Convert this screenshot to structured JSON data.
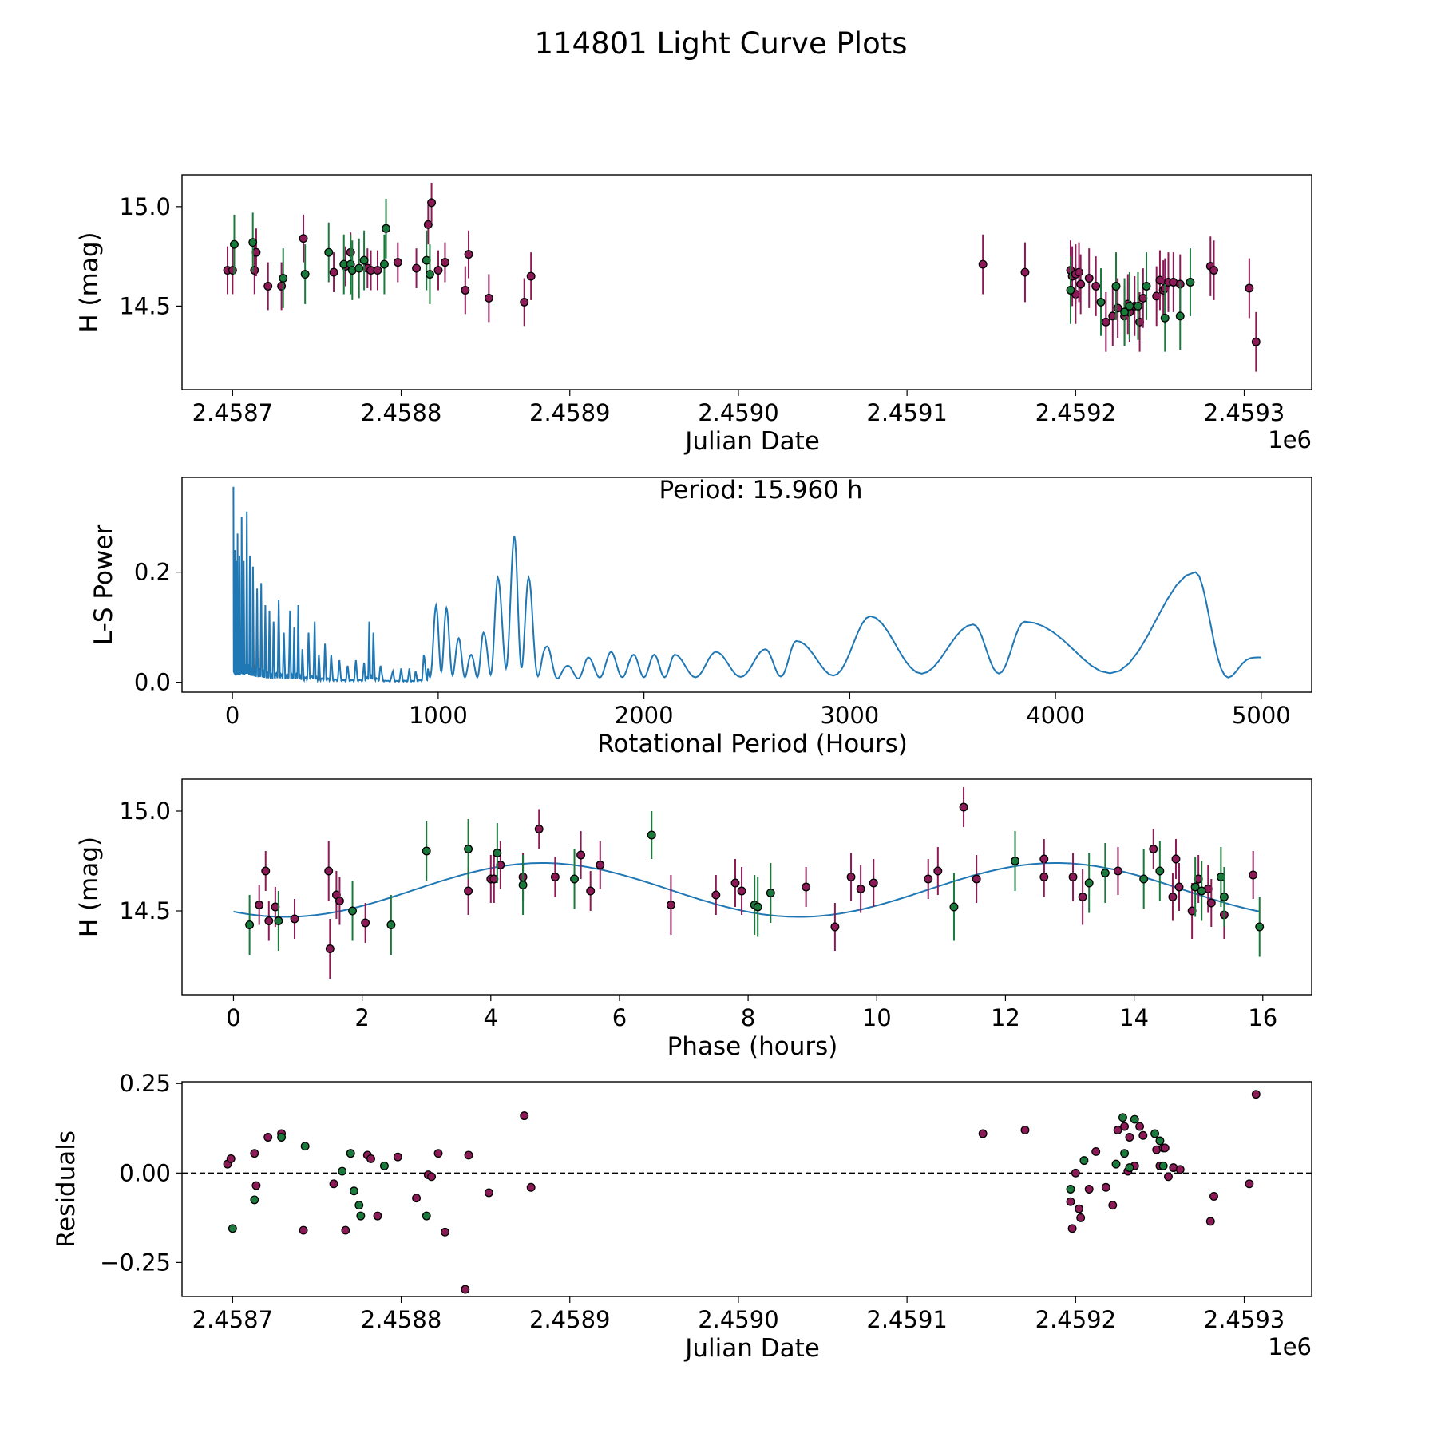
{
  "figure": {
    "title": "114801 Light Curve Plots",
    "colors": {
      "point_a": "#8b1a56",
      "point_b": "#1a7a3c",
      "curve": "#1f77b4",
      "frame": "#000000"
    }
  },
  "chart_data": [
    {
      "type": "scatter",
      "name": "light-curve",
      "xlabel": "Julian Date",
      "ylabel": "H (mag)",
      "xlim": [
        2458670,
        2459340
      ],
      "ylim": [
        14.08,
        15.16
      ],
      "x_offset_label": "1e6",
      "xticks": [
        2458700,
        2458800,
        2458900,
        2459000,
        2459100,
        2459200,
        2459300
      ],
      "xtick_labels": [
        "2.4587",
        "2.4588",
        "2.4589",
        "2.4590",
        "2.4591",
        "2.4592",
        "2.4593"
      ],
      "yticks": [
        14.5,
        15.0
      ],
      "ytick_labels": [
        "14.5",
        "15.0"
      ],
      "series": [
        {
          "name": "band-a",
          "color": "#8b1a56",
          "x": [
            2458697,
            2458700,
            2458713,
            2458714,
            2458721,
            2458729,
            2458742,
            2458760,
            2458767,
            2458770,
            2458780,
            2458782,
            2458786,
            2458798,
            2458809,
            2458816,
            2458818,
            2458822,
            2458826,
            2458838,
            2458840,
            2458852,
            2458873,
            2458877,
            2459145,
            2459170,
            2459197,
            2459198,
            2459200,
            2459200,
            2459202,
            2459203,
            2459208,
            2459212,
            2459218,
            2459222,
            2459225,
            2459229,
            2459231,
            2459232,
            2459235,
            2459238,
            2459240,
            2459248,
            2459250,
            2459252,
            2459253,
            2459255,
            2459258,
            2459262,
            2459280,
            2459282,
            2459303,
            2459307
          ],
          "y": [
            14.68,
            14.68,
            14.68,
            14.77,
            14.6,
            14.6,
            14.84,
            14.67,
            14.7,
            14.77,
            14.69,
            14.68,
            14.68,
            14.72,
            14.69,
            14.91,
            15.02,
            14.68,
            14.72,
            14.58,
            14.76,
            14.54,
            14.52,
            14.65,
            14.71,
            14.67,
            14.68,
            14.65,
            14.56,
            14.66,
            14.67,
            14.61,
            14.64,
            14.6,
            14.42,
            14.45,
            14.49,
            14.45,
            14.51,
            14.47,
            14.5,
            14.42,
            14.54,
            14.55,
            14.63,
            14.58,
            14.59,
            14.62,
            14.62,
            14.61,
            14.7,
            14.68,
            14.59,
            14.32
          ],
          "yerr": [
            0.12,
            0.12,
            0.12,
            0.12,
            0.12,
            0.12,
            0.12,
            0.1,
            0.1,
            0.1,
            0.1,
            0.1,
            0.1,
            0.1,
            0.1,
            0.1,
            0.1,
            0.1,
            0.1,
            0.12,
            0.12,
            0.12,
            0.12,
            0.12,
            0.15,
            0.15,
            0.15,
            0.15,
            0.15,
            0.15,
            0.15,
            0.15,
            0.15,
            0.15,
            0.15,
            0.15,
            0.15,
            0.15,
            0.15,
            0.15,
            0.15,
            0.15,
            0.15,
            0.15,
            0.15,
            0.15,
            0.15,
            0.15,
            0.15,
            0.15,
            0.15,
            0.15,
            0.15,
            0.15
          ]
        },
        {
          "name": "band-b",
          "color": "#1a7a3c",
          "x": [
            2458701,
            2458712,
            2458730,
            2458743,
            2458757,
            2458766,
            2458770,
            2458771,
            2458775,
            2458778,
            2458790,
            2458791,
            2458815,
            2458817,
            2459197,
            2459215,
            2459224,
            2459229,
            2459232,
            2459237,
            2459242,
            2459253,
            2459262,
            2459268
          ],
          "y": [
            14.81,
            14.82,
            14.64,
            14.66,
            14.77,
            14.71,
            14.71,
            14.68,
            14.69,
            14.73,
            14.71,
            14.89,
            14.73,
            14.66,
            14.58,
            14.52,
            14.6,
            14.47,
            14.5,
            14.5,
            14.6,
            14.44,
            14.45,
            14.62
          ],
          "yerr": [
            0.15,
            0.15,
            0.15,
            0.15,
            0.15,
            0.15,
            0.15,
            0.15,
            0.15,
            0.15,
            0.15,
            0.15,
            0.15,
            0.15,
            0.17,
            0.17,
            0.17,
            0.17,
            0.17,
            0.17,
            0.17,
            0.17,
            0.17,
            0.17
          ]
        }
      ]
    },
    {
      "type": "line",
      "name": "periodogram",
      "xlabel": "Rotational Period (Hours)",
      "ylabel": "L-S Power",
      "xlim": [
        -245,
        5245
      ],
      "ylim": [
        -0.018,
        0.372
      ],
      "xticks": [
        0,
        1000,
        2000,
        3000,
        4000,
        5000
      ],
      "xtick_labels": [
        "0",
        "1000",
        "2000",
        "3000",
        "4000",
        "5000"
      ],
      "yticks": [
        0.0,
        0.2
      ],
      "ytick_labels": [
        "0.0",
        "0.2"
      ],
      "annotation": "Period: 15.960 h",
      "peaks": [
        [
          5,
          0.355
        ],
        [
          12,
          0.24
        ],
        [
          18,
          0.22
        ],
        [
          25,
          0.27
        ],
        [
          34,
          0.23
        ],
        [
          45,
          0.3
        ],
        [
          55,
          0.22
        ],
        [
          70,
          0.31
        ],
        [
          85,
          0.23
        ],
        [
          100,
          0.21
        ],
        [
          120,
          0.17
        ],
        [
          140,
          0.18
        ],
        [
          160,
          0.14
        ],
        [
          180,
          0.13
        ],
        [
          200,
          0.11
        ],
        [
          225,
          0.15
        ],
        [
          250,
          0.09
        ],
        [
          280,
          0.13
        ],
        [
          300,
          0.1
        ],
        [
          320,
          0.14
        ],
        [
          340,
          0.06
        ],
        [
          370,
          0.09
        ],
        [
          400,
          0.11
        ],
        [
          420,
          0.05
        ],
        [
          450,
          0.07
        ],
        [
          480,
          0.05
        ],
        [
          520,
          0.04
        ],
        [
          560,
          0.03
        ],
        [
          600,
          0.04
        ],
        [
          640,
          0.035
        ],
        [
          665,
          0.11
        ],
        [
          685,
          0.09
        ],
        [
          720,
          0.03
        ],
        [
          780,
          0.02
        ],
        [
          820,
          0.025
        ],
        [
          860,
          0.025
        ],
        [
          890,
          0.02
        ],
        [
          930,
          0.05
        ],
        [
          990,
          0.14
        ],
        [
          1040,
          0.135
        ],
        [
          1100,
          0.08
        ],
        [
          1160,
          0.05
        ],
        [
          1220,
          0.09
        ],
        [
          1290,
          0.19
        ],
        [
          1370,
          0.265
        ],
        [
          1440,
          0.19
        ],
        [
          1530,
          0.065
        ],
        [
          1630,
          0.03
        ],
        [
          1730,
          0.045
        ],
        [
          1840,
          0.055
        ],
        [
          1950,
          0.05
        ],
        [
          2050,
          0.05
        ],
        [
          2150,
          0.05
        ],
        [
          2350,
          0.055
        ],
        [
          2590,
          0.06
        ],
        [
          2740,
          0.075
        ],
        [
          3100,
          0.12
        ],
        [
          3600,
          0.105
        ],
        [
          3850,
          0.11
        ],
        [
          4680,
          0.2
        ],
        [
          5000,
          0.045
        ]
      ]
    },
    {
      "type": "scatter",
      "name": "phase-folded",
      "xlabel": "Phase (hours)",
      "ylabel": "H (mag)",
      "xlim": [
        -0.8,
        16.76
      ],
      "ylim": [
        14.08,
        15.16
      ],
      "xticks": [
        0,
        2,
        4,
        6,
        8,
        10,
        12,
        14,
        16
      ],
      "xtick_labels": [
        "0",
        "2",
        "4",
        "6",
        "8",
        "10",
        "12",
        "14",
        "16"
      ],
      "yticks": [
        14.5,
        15.0
      ],
      "ytick_labels": [
        "14.5",
        "15.0"
      ],
      "fit_curve": {
        "period": 15.96,
        "mean": 14.605,
        "amplitude": 0.135,
        "peak_phase": 4.8
      },
      "series": [
        {
          "name": "band-a",
          "color": "#8b1a56",
          "x": [
            0.4,
            0.5,
            0.55,
            0.65,
            0.95,
            1.48,
            1.5,
            1.6,
            1.65,
            2.05,
            3.65,
            4.0,
            4.05,
            4.15,
            4.5,
            4.75,
            5.0,
            5.4,
            5.55,
            5.7,
            6.8,
            7.5,
            7.8,
            7.9,
            8.9,
            9.35,
            9.6,
            9.75,
            9.95,
            10.8,
            10.95,
            11.35,
            11.55,
            12.6,
            12.6,
            13.05,
            13.2,
            13.75,
            14.3,
            14.6,
            14.65,
            14.7,
            14.9,
            15.0,
            15.15,
            15.2,
            15.4,
            15.85
          ],
          "y": [
            14.53,
            14.7,
            14.45,
            14.52,
            14.46,
            14.7,
            14.31,
            14.58,
            14.55,
            14.44,
            14.6,
            14.66,
            14.66,
            14.73,
            14.67,
            14.91,
            14.67,
            14.78,
            14.6,
            14.73,
            14.53,
            14.58,
            14.64,
            14.6,
            14.62,
            14.42,
            14.67,
            14.61,
            14.64,
            14.66,
            14.7,
            15.02,
            14.66,
            14.76,
            14.67,
            14.67,
            14.57,
            14.7,
            14.81,
            14.57,
            14.76,
            14.62,
            14.5,
            14.66,
            14.61,
            14.54,
            14.48,
            14.68
          ],
          "yerr": [
            0.1,
            0.1,
            0.1,
            0.1,
            0.1,
            0.15,
            0.15,
            0.12,
            0.12,
            0.1,
            0.12,
            0.12,
            0.12,
            0.12,
            0.12,
            0.1,
            0.1,
            0.12,
            0.1,
            0.12,
            0.15,
            0.1,
            0.12,
            0.12,
            0.1,
            0.12,
            0.12,
            0.12,
            0.12,
            0.1,
            0.12,
            0.1,
            0.12,
            0.1,
            0.1,
            0.12,
            0.14,
            0.12,
            0.1,
            0.12,
            0.1,
            0.12,
            0.14,
            0.12,
            0.12,
            0.12,
            0.12,
            0.12
          ]
        },
        {
          "name": "band-b",
          "color": "#1a7a3c",
          "x": [
            0.25,
            0.7,
            1.85,
            2.45,
            3.0,
            3.65,
            4.1,
            4.5,
            5.3,
            6.5,
            8.1,
            8.15,
            8.35,
            11.2,
            12.15,
            13.3,
            13.55,
            14.15,
            14.4,
            14.95,
            15.05,
            15.35,
            15.4,
            15.95
          ],
          "y": [
            14.43,
            14.45,
            14.5,
            14.43,
            14.8,
            14.81,
            14.79,
            14.63,
            14.66,
            14.88,
            14.53,
            14.52,
            14.59,
            14.52,
            14.75,
            14.64,
            14.69,
            14.66,
            14.7,
            14.62,
            14.6,
            14.67,
            14.57,
            14.42
          ],
          "yerr": [
            0.15,
            0.15,
            0.15,
            0.15,
            0.15,
            0.15,
            0.15,
            0.15,
            0.15,
            0.12,
            0.15,
            0.15,
            0.15,
            0.17,
            0.15,
            0.15,
            0.15,
            0.15,
            0.15,
            0.15,
            0.15,
            0.15,
            0.15,
            0.15
          ]
        }
      ]
    },
    {
      "type": "scatter",
      "name": "residuals",
      "xlabel": "Julian Date",
      "ylabel": "Residuals",
      "xlim": [
        2458670,
        2459340
      ],
      "ylim": [
        -0.345,
        0.255
      ],
      "x_offset_label": "1e6",
      "xticks": [
        2458700,
        2458800,
        2458900,
        2459000,
        2459100,
        2459200,
        2459300
      ],
      "xtick_labels": [
        "2.4587",
        "2.4588",
        "2.4589",
        "2.4590",
        "2.4591",
        "2.4592",
        "2.4593"
      ],
      "yticks": [
        -0.25,
        0.0,
        0.25
      ],
      "ytick_labels": [
        "−0.25",
        "0.00",
        "0.25"
      ],
      "zero_line": 0,
      "series": [
        {
          "name": "band-a",
          "color": "#8b1a56",
          "x": [
            2458697,
            2458699,
            2458713,
            2458714,
            2458721,
            2458729,
            2458742,
            2458760,
            2458767,
            2458770,
            2458780,
            2458782,
            2458786,
            2458798,
            2458809,
            2458816,
            2458818,
            2458822,
            2458826,
            2458838,
            2458840,
            2458852,
            2458873,
            2458877,
            2459145,
            2459170,
            2459197,
            2459198,
            2459200,
            2459202,
            2459203,
            2459208,
            2459212,
            2459218,
            2459222,
            2459225,
            2459229,
            2459231,
            2459232,
            2459235,
            2459238,
            2459240,
            2459248,
            2459250,
            2459252,
            2459253,
            2459255,
            2459258,
            2459262,
            2459280,
            2459282,
            2459303,
            2459307
          ],
          "y": [
            0.025,
            0.04,
            0.055,
            -0.035,
            0.1,
            0.11,
            -0.16,
            -0.03,
            -0.16,
            0.055,
            0.05,
            0.04,
            -0.12,
            0.045,
            -0.07,
            -0.005,
            -0.01,
            0.055,
            -0.165,
            -0.325,
            0.05,
            -0.055,
            0.16,
            -0.04,
            0.11,
            0.12,
            -0.08,
            -0.155,
            0.0,
            -0.1,
            -0.125,
            -0.045,
            0.06,
            -0.04,
            -0.09,
            0.12,
            0.13,
            0.005,
            0.1,
            0.02,
            0.13,
            0.105,
            0.065,
            0.02,
            0.07,
            0.07,
            -0.01,
            0.015,
            0.01,
            -0.135,
            -0.065,
            -0.03,
            0.22
          ]
        },
        {
          "name": "band-b",
          "color": "#1a7a3c",
          "x": [
            2458700,
            2458713,
            2458729,
            2458743,
            2458765,
            2458770,
            2458772,
            2458775,
            2458776,
            2458790,
            2458815,
            2459197,
            2459205,
            2459224,
            2459228,
            2459229,
            2459232,
            2459235,
            2459247,
            2459250,
            2459252
          ],
          "y": [
            -0.155,
            -0.075,
            0.1,
            0.075,
            0.005,
            0.055,
            -0.05,
            -0.09,
            -0.12,
            0.02,
            -0.12,
            -0.045,
            0.035,
            0.025,
            0.155,
            0.055,
            0.015,
            0.15,
            0.11,
            0.09,
            0.02
          ]
        }
      ]
    }
  ]
}
